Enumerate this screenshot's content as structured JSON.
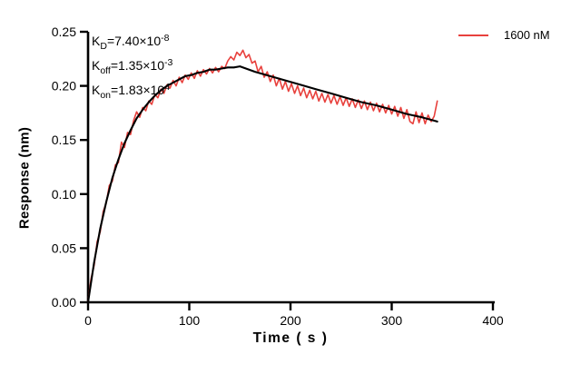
{
  "legend": {
    "label": "1600 nM",
    "color": "#e8413d"
  },
  "annotations": {
    "lines": [
      {
        "base": "K",
        "sub": "D",
        "mid": "=7.40×10",
        "sup": "-8"
      },
      {
        "base": "K",
        "sub": "off",
        "mid": "=1.35×10",
        "sup": "-3"
      },
      {
        "base": "K",
        "sub": "on",
        "mid": "=1.83×10",
        "sup": "4"
      }
    ]
  },
  "chart_data": {
    "type": "line",
    "title": "",
    "xlabel": "Time ( s )",
    "ylabel": "Response (nm)",
    "xlim": [
      0,
      400
    ],
    "ylim": [
      0,
      0.25
    ],
    "grid": false,
    "legend_position": "top-right",
    "axis_color": "#000000",
    "xticks": [
      [
        0,
        "0"
      ],
      [
        100,
        "100"
      ],
      [
        200,
        "200"
      ],
      [
        300,
        "300"
      ],
      [
        400,
        "400"
      ]
    ],
    "yticks": [
      [
        0,
        "0.00"
      ],
      [
        0.05,
        "0.05"
      ],
      [
        0.1,
        "0.10"
      ],
      [
        0.15,
        "0.15"
      ],
      [
        0.2,
        "0.20"
      ],
      [
        0.25,
        "0.25"
      ]
    ],
    "series": [
      {
        "name": "1600 nM",
        "color": "#e8413d",
        "width": 1.6,
        "points": [
          [
            0,
            0.001
          ],
          [
            3,
            0.022
          ],
          [
            6,
            0.034
          ],
          [
            9,
            0.056
          ],
          [
            12,
            0.065
          ],
          [
            15,
            0.084
          ],
          [
            18,
            0.092
          ],
          [
            21,
            0.108
          ],
          [
            24,
            0.112
          ],
          [
            27,
            0.127
          ],
          [
            30,
            0.129
          ],
          [
            33,
            0.148
          ],
          [
            36,
            0.143
          ],
          [
            39,
            0.157
          ],
          [
            42,
            0.155
          ],
          [
            45,
            0.168
          ],
          [
            48,
            0.176
          ],
          [
            51,
            0.171
          ],
          [
            54,
            0.18
          ],
          [
            57,
            0.177
          ],
          [
            60,
            0.186
          ],
          [
            63,
            0.183
          ],
          [
            66,
            0.192
          ],
          [
            69,
            0.189
          ],
          [
            72,
            0.197
          ],
          [
            75,
            0.193
          ],
          [
            78,
            0.201
          ],
          [
            81,
            0.198
          ],
          [
            84,
            0.205
          ],
          [
            87,
            0.2
          ],
          [
            90,
            0.208
          ],
          [
            93,
            0.203
          ],
          [
            96,
            0.21
          ],
          [
            99,
            0.206
          ],
          [
            102,
            0.212
          ],
          [
            105,
            0.207
          ],
          [
            108,
            0.214
          ],
          [
            111,
            0.209
          ],
          [
            114,
            0.215
          ],
          [
            117,
            0.211
          ],
          [
            120,
            0.216
          ],
          [
            123,
            0.212
          ],
          [
            126,
            0.217
          ],
          [
            129,
            0.213
          ],
          [
            132,
            0.218
          ],
          [
            135,
            0.216
          ],
          [
            138,
            0.223
          ],
          [
            141,
            0.227
          ],
          [
            144,
            0.224
          ],
          [
            147,
            0.231
          ],
          [
            150,
            0.228
          ],
          [
            153,
            0.233
          ],
          [
            156,
            0.226
          ],
          [
            159,
            0.229
          ],
          [
            162,
            0.221
          ],
          [
            165,
            0.223
          ],
          [
            168,
            0.213
          ],
          [
            171,
            0.218
          ],
          [
            174,
            0.208
          ],
          [
            177,
            0.213
          ],
          [
            180,
            0.204
          ],
          [
            183,
            0.21
          ],
          [
            186,
            0.2
          ],
          [
            189,
            0.207
          ],
          [
            192,
            0.197
          ],
          [
            195,
            0.204
          ],
          [
            198,
            0.195
          ],
          [
            201,
            0.202
          ],
          [
            204,
            0.193
          ],
          [
            207,
            0.2
          ],
          [
            210,
            0.191
          ],
          [
            213,
            0.198
          ],
          [
            216,
            0.189
          ],
          [
            219,
            0.196
          ],
          [
            222,
            0.188
          ],
          [
            225,
            0.195
          ],
          [
            228,
            0.186
          ],
          [
            231,
            0.193
          ],
          [
            234,
            0.185
          ],
          [
            237,
            0.192
          ],
          [
            240,
            0.184
          ],
          [
            243,
            0.191
          ],
          [
            246,
            0.183
          ],
          [
            249,
            0.19
          ],
          [
            252,
            0.182
          ],
          [
            255,
            0.189
          ],
          [
            258,
            0.181
          ],
          [
            261,
            0.188
          ],
          [
            264,
            0.18
          ],
          [
            267,
            0.187
          ],
          [
            270,
            0.179
          ],
          [
            273,
            0.186
          ],
          [
            276,
            0.178
          ],
          [
            279,
            0.185
          ],
          [
            282,
            0.177
          ],
          [
            285,
            0.184
          ],
          [
            288,
            0.176
          ],
          [
            291,
            0.183
          ],
          [
            294,
            0.175
          ],
          [
            297,
            0.182
          ],
          [
            300,
            0.174
          ],
          [
            303,
            0.181
          ],
          [
            306,
            0.172
          ],
          [
            309,
            0.18
          ],
          [
            312,
            0.17
          ],
          [
            315,
            0.178
          ],
          [
            318,
            0.167
          ],
          [
            321,
            0.165
          ],
          [
            324,
            0.176
          ],
          [
            327,
            0.166
          ],
          [
            330,
            0.175
          ],
          [
            333,
            0.165
          ],
          [
            336,
            0.173
          ],
          [
            339,
            0.167
          ],
          [
            342,
            0.172
          ],
          [
            345,
            0.186
          ]
        ]
      },
      {
        "name": "fit",
        "color": "#000000",
        "width": 2.1,
        "points": [
          [
            0,
            0.0
          ],
          [
            6,
            0.037
          ],
          [
            12,
            0.068
          ],
          [
            18,
            0.093
          ],
          [
            24,
            0.115
          ],
          [
            30,
            0.132
          ],
          [
            36,
            0.147
          ],
          [
            42,
            0.159
          ],
          [
            48,
            0.17
          ],
          [
            54,
            0.178
          ],
          [
            60,
            0.185
          ],
          [
            66,
            0.191
          ],
          [
            72,
            0.196
          ],
          [
            78,
            0.2
          ],
          [
            84,
            0.203
          ],
          [
            90,
            0.206
          ],
          [
            96,
            0.209
          ],
          [
            102,
            0.21
          ],
          [
            108,
            0.212
          ],
          [
            114,
            0.213
          ],
          [
            120,
            0.215
          ],
          [
            126,
            0.215
          ],
          [
            132,
            0.216
          ],
          [
            138,
            0.217
          ],
          [
            144,
            0.217
          ],
          [
            150,
            0.218
          ],
          [
            165,
            0.213
          ],
          [
            180,
            0.209
          ],
          [
            195,
            0.205
          ],
          [
            210,
            0.201
          ],
          [
            225,
            0.197
          ],
          [
            240,
            0.193
          ],
          [
            255,
            0.189
          ],
          [
            270,
            0.185
          ],
          [
            285,
            0.182
          ],
          [
            300,
            0.178
          ],
          [
            315,
            0.174
          ],
          [
            330,
            0.171
          ],
          [
            345,
            0.167
          ]
        ]
      }
    ]
  }
}
